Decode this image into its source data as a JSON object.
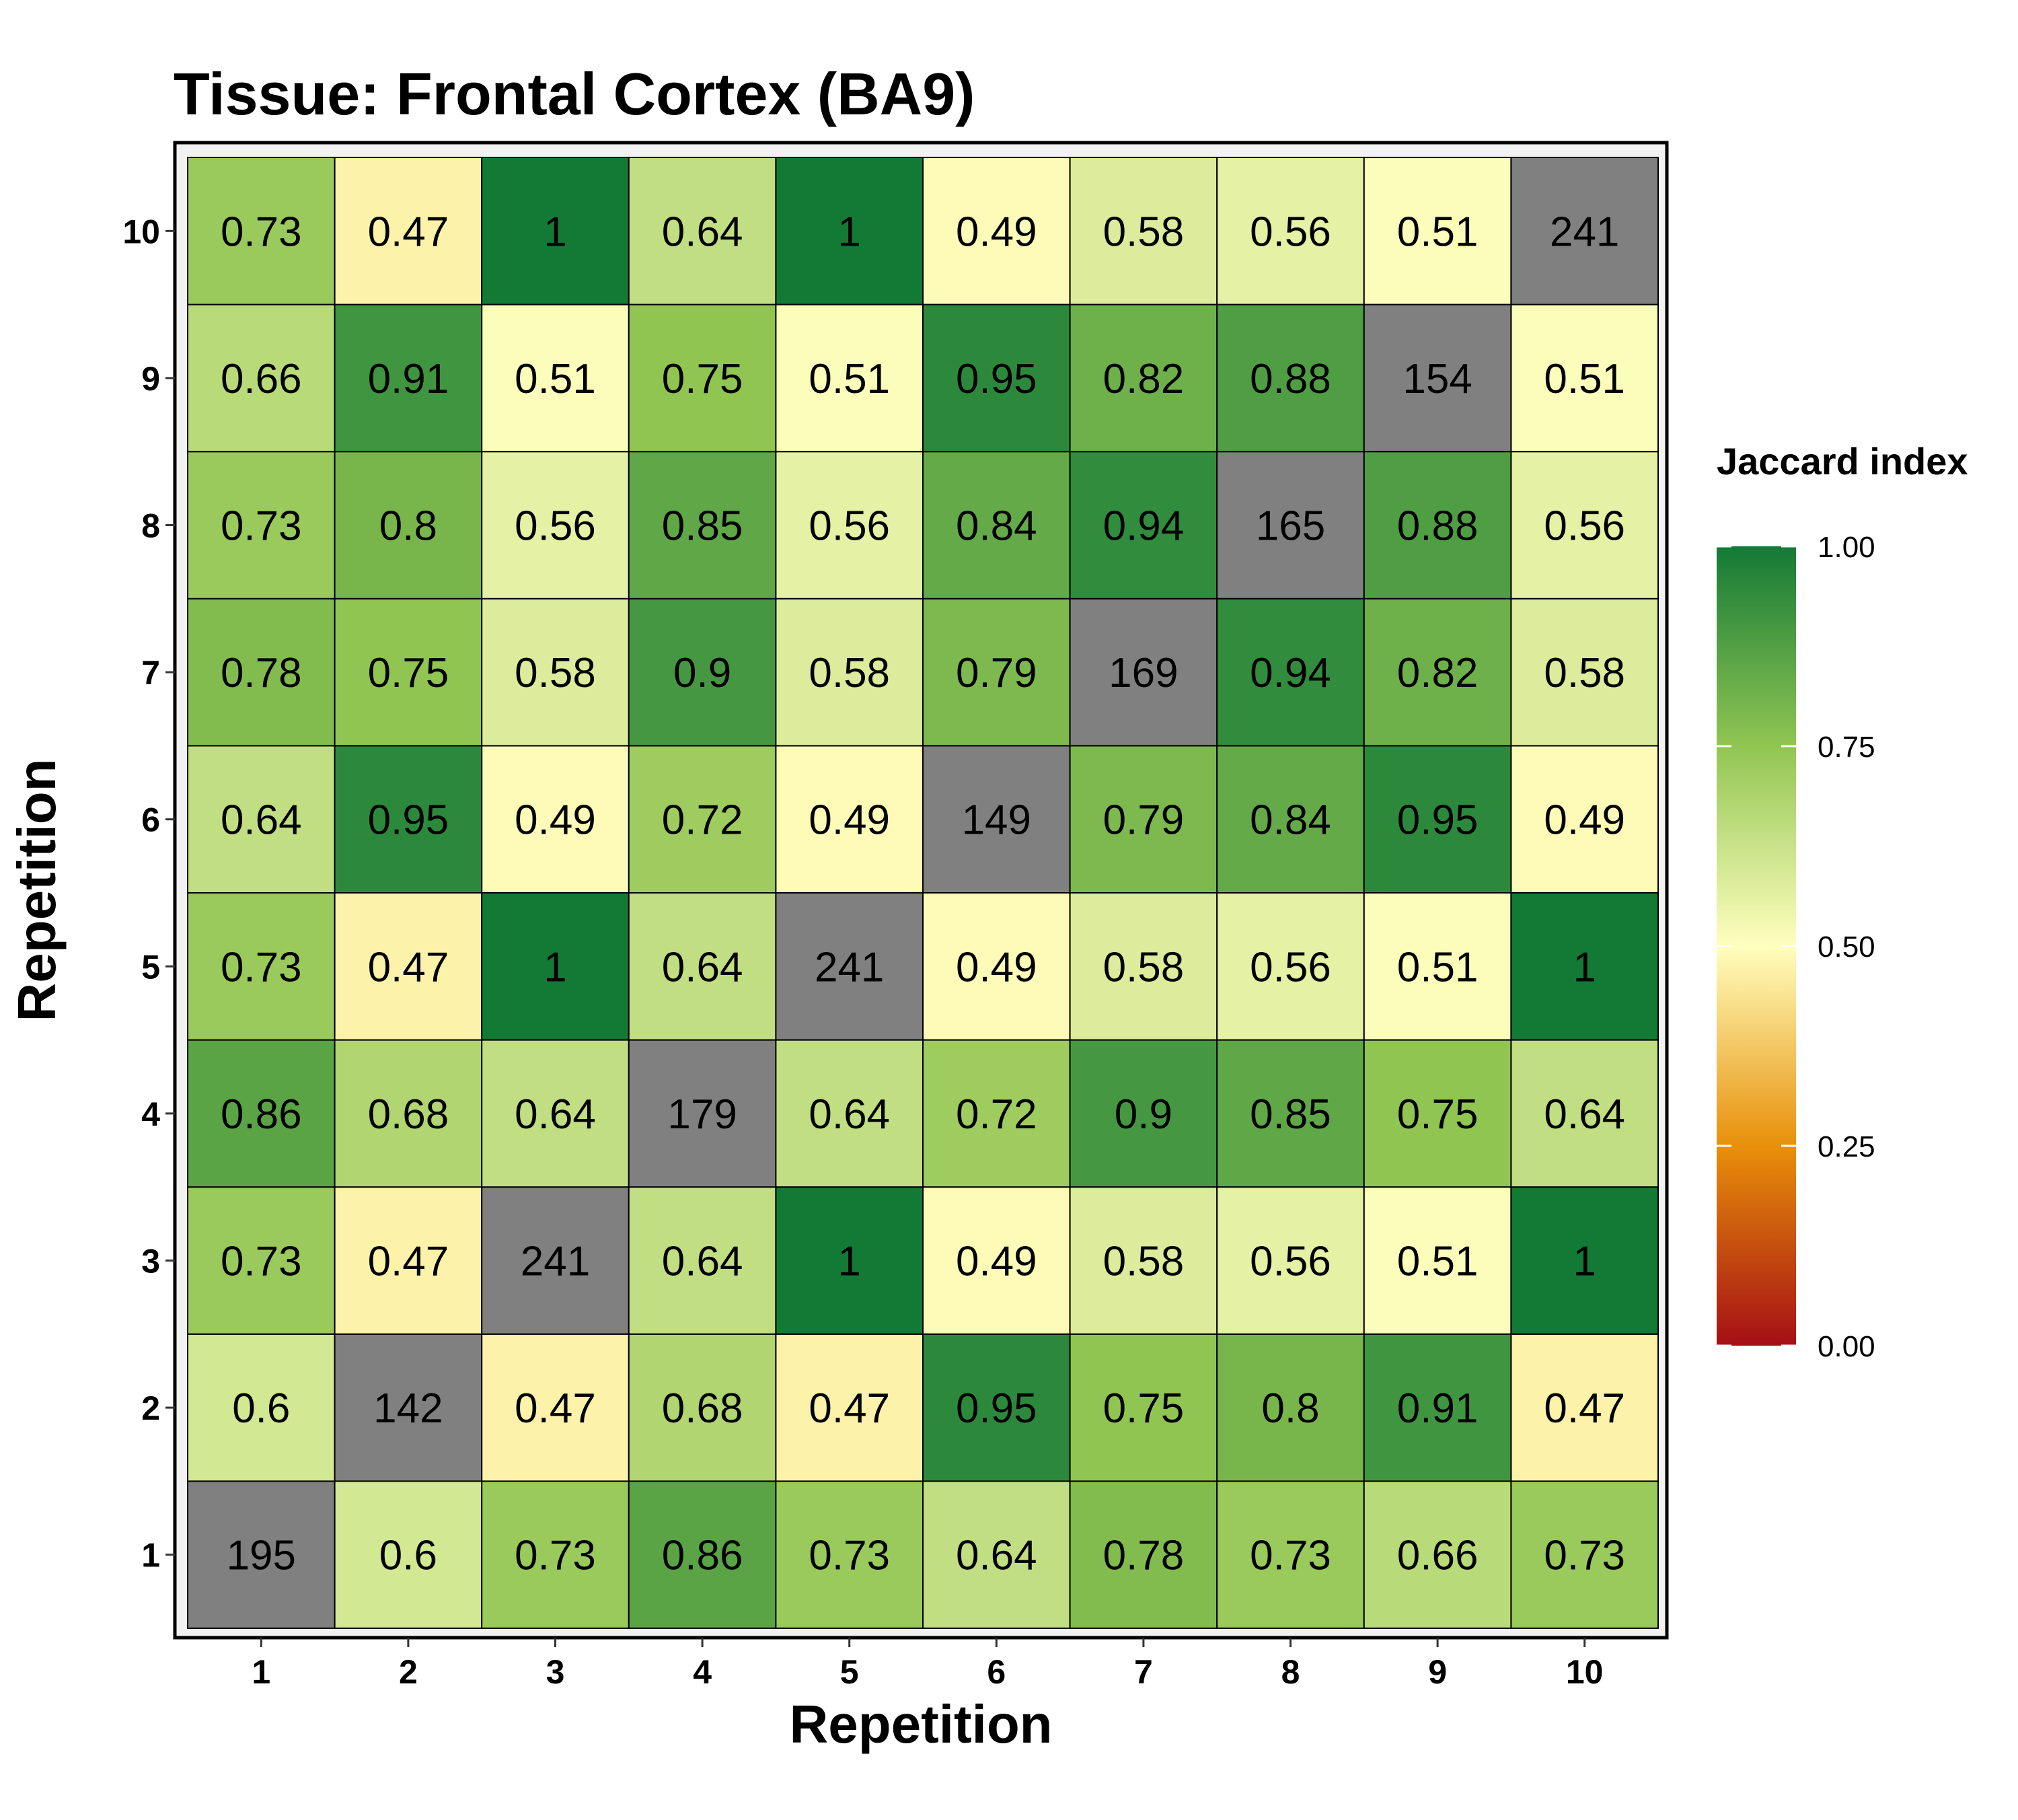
{
  "chart_data": {
    "type": "heatmap",
    "title": "Tissue: Frontal Cortex (BA9)",
    "xlabel": "Repetition",
    "ylabel": "Repetition",
    "x_categories": [
      "1",
      "2",
      "3",
      "4",
      "5",
      "6",
      "7",
      "8",
      "9",
      "10"
    ],
    "y_categories": [
      "1",
      "2",
      "3",
      "4",
      "5",
      "6",
      "7",
      "8",
      "9",
      "10"
    ],
    "rows": [
      {
        "y": "1",
        "labels": [
          "195",
          "0.6",
          "0.73",
          "0.86",
          "0.73",
          "0.64",
          "0.78",
          "0.73",
          "0.66",
          "0.73"
        ]
      },
      {
        "y": "2",
        "labels": [
          "0.6",
          "142",
          "0.47",
          "0.68",
          "0.47",
          "0.95",
          "0.75",
          "0.8",
          "0.91",
          "0.47"
        ]
      },
      {
        "y": "3",
        "labels": [
          "0.73",
          "0.47",
          "241",
          "0.64",
          "1",
          "0.49",
          "0.58",
          "0.56",
          "0.51",
          "1"
        ]
      },
      {
        "y": "4",
        "labels": [
          "0.86",
          "0.68",
          "0.64",
          "179",
          "0.64",
          "0.72",
          "0.9",
          "0.85",
          "0.75",
          "0.64"
        ]
      },
      {
        "y": "5",
        "labels": [
          "0.73",
          "0.47",
          "1",
          "0.64",
          "241",
          "0.49",
          "0.58",
          "0.56",
          "0.51",
          "1"
        ]
      },
      {
        "y": "6",
        "labels": [
          "0.64",
          "0.95",
          "0.49",
          "0.72",
          "0.49",
          "149",
          "0.79",
          "0.84",
          "0.95",
          "0.49"
        ]
      },
      {
        "y": "7",
        "labels": [
          "0.78",
          "0.75",
          "0.58",
          "0.9",
          "0.58",
          "0.79",
          "169",
          "0.94",
          "0.82",
          "0.58"
        ]
      },
      {
        "y": "8",
        "labels": [
          "0.73",
          "0.8",
          "0.56",
          "0.85",
          "0.56",
          "0.84",
          "0.94",
          "165",
          "0.88",
          "0.56"
        ]
      },
      {
        "y": "9",
        "labels": [
          "0.66",
          "0.91",
          "0.51",
          "0.75",
          "0.51",
          "0.95",
          "0.82",
          "0.88",
          "154",
          "0.51"
        ]
      },
      {
        "y": "10",
        "labels": [
          "0.73",
          "0.47",
          "1",
          "0.64",
          "1",
          "0.49",
          "0.58",
          "0.56",
          "0.51",
          "241"
        ]
      }
    ],
    "diagonal_fill": "#808080",
    "legend": {
      "title": "Jaccard index",
      "placement": "right",
      "range": [
        0,
        1
      ],
      "ticks": [
        "0.00",
        "0.25",
        "0.50",
        "0.75",
        "1.00"
      ],
      "colors": [
        "#a50f15",
        "#e8900a",
        "#ffffbf",
        "#91c552",
        "#137a36"
      ]
    },
    "grid": false
  }
}
